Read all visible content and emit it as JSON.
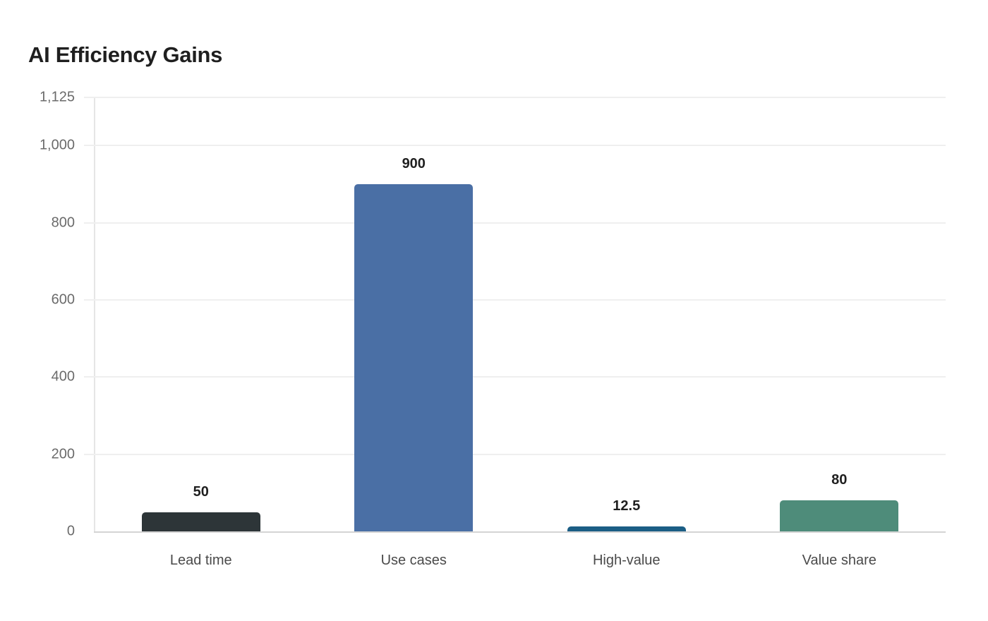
{
  "chart_data": {
    "type": "bar",
    "title": "AI Efficiency Gains",
    "xlabel": "",
    "ylabel": "",
    "categories": [
      "Lead time",
      "Use cases",
      "High-value",
      "Value share"
    ],
    "values": [
      50,
      900,
      12.5,
      80
    ],
    "value_labels": [
      "50",
      "900",
      "12.5",
      "80"
    ],
    "colors": [
      "#2d3538",
      "#4a6fa5",
      "#1b5e85",
      "#4e8c7a"
    ],
    "ylim": [
      0,
      1125
    ],
    "yticks": [
      0,
      200,
      400,
      600,
      800,
      1000,
      1125
    ],
    "ytick_labels": [
      "0",
      "200",
      "400",
      "600",
      "800",
      "1,000",
      "1,125"
    ],
    "grid": true,
    "legend": null
  }
}
